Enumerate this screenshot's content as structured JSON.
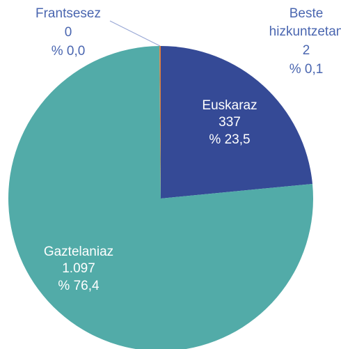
{
  "chart_data": {
    "type": "pie",
    "categories": [
      "Euskaraz",
      "Gaztelaniaz",
      "Frantsesez",
      "Beste hizkuntzetan"
    ],
    "values": [
      337,
      1097,
      0,
      2
    ],
    "value_labels": [
      "337",
      "1.097",
      "0",
      "2"
    ],
    "percentage_labels": [
      "% 23,5",
      "% 76,4",
      "% 0,0",
      "% 0,1"
    ],
    "colors": [
      "#354a96",
      "#52aba8",
      "#9aa9d6",
      "#e07b39"
    ]
  }
}
